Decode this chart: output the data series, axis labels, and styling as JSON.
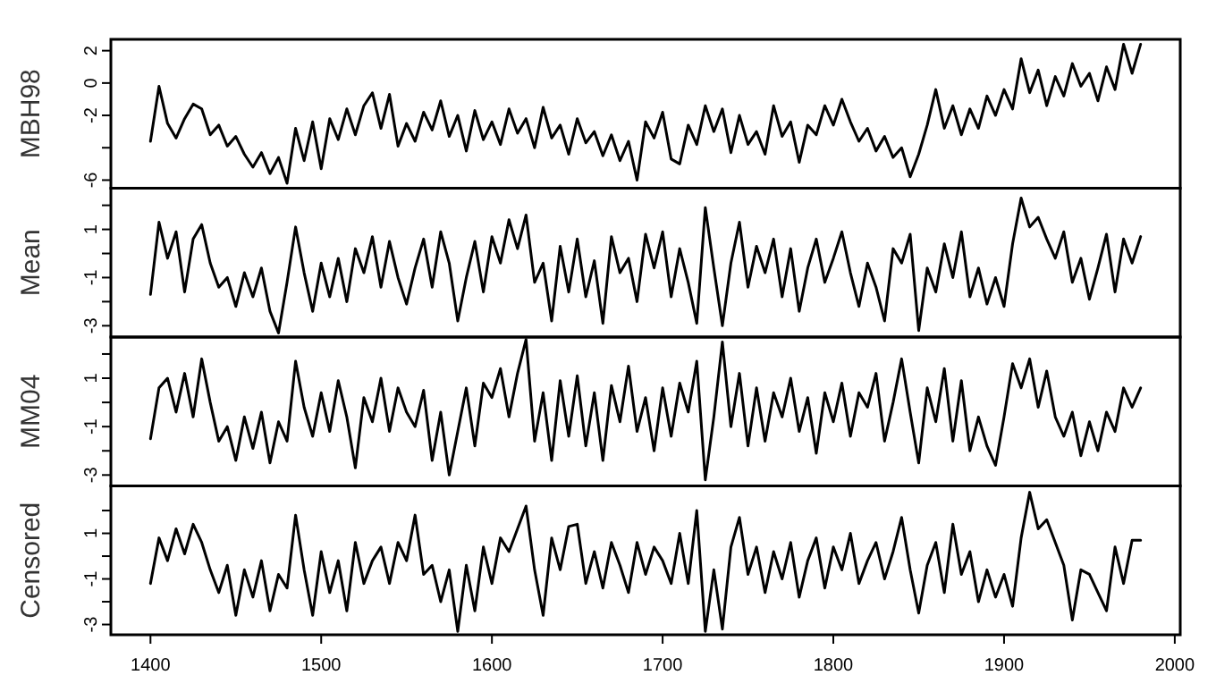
{
  "chart_data": [
    {
      "type": "line",
      "ylabel": "MBH98",
      "x": [
        1400,
        1405,
        1410,
        1415,
        1420,
        1425,
        1430,
        1435,
        1440,
        1445,
        1450,
        1455,
        1460,
        1465,
        1470,
        1475,
        1480,
        1485,
        1490,
        1495,
        1500,
        1505,
        1510,
        1515,
        1520,
        1525,
        1530,
        1535,
        1540,
        1545,
        1550,
        1555,
        1560,
        1565,
        1570,
        1575,
        1580,
        1585,
        1590,
        1595,
        1600,
        1605,
        1610,
        1615,
        1620,
        1625,
        1630,
        1635,
        1640,
        1645,
        1650,
        1655,
        1660,
        1665,
        1670,
        1675,
        1680,
        1685,
        1690,
        1695,
        1700,
        1705,
        1710,
        1715,
        1720,
        1725,
        1730,
        1735,
        1740,
        1745,
        1750,
        1755,
        1760,
        1765,
        1770,
        1775,
        1780,
        1785,
        1790,
        1795,
        1800,
        1805,
        1810,
        1815,
        1820,
        1825,
        1830,
        1835,
        1840,
        1845,
        1850,
        1855,
        1860,
        1865,
        1870,
        1875,
        1880,
        1885,
        1890,
        1895,
        1900,
        1905,
        1910,
        1915,
        1920,
        1925,
        1930,
        1935,
        1940,
        1945,
        1950,
        1955,
        1960,
        1965,
        1970,
        1975,
        1980
      ],
      "values": [
        -3.6,
        -0.2,
        -2.5,
        -3.4,
        -2.2,
        -1.3,
        -1.6,
        -3.2,
        -2.6,
        -3.9,
        -3.3,
        -4.4,
        -5.2,
        -4.3,
        -5.6,
        -4.6,
        -6.2,
        -2.8,
        -4.8,
        -2.4,
        -5.3,
        -2.2,
        -3.5,
        -1.6,
        -3.2,
        -1.4,
        -0.6,
        -2.8,
        -0.7,
        -3.9,
        -2.5,
        -3.6,
        -1.8,
        -2.9,
        -1.1,
        -3.3,
        -2.0,
        -4.2,
        -1.7,
        -3.5,
        -2.4,
        -3.8,
        -1.6,
        -3.1,
        -2.2,
        -4.0,
        -1.5,
        -3.4,
        -2.6,
        -4.4,
        -2.2,
        -3.7,
        -3.0,
        -4.5,
        -3.2,
        -4.8,
        -3.6,
        -6.0,
        -2.4,
        -3.4,
        -1.8,
        -4.7,
        -5.0,
        -2.6,
        -3.8,
        -1.4,
        -3.0,
        -1.6,
        -4.3,
        -2.0,
        -3.8,
        -3.0,
        -4.4,
        -1.4,
        -3.3,
        -2.4,
        -4.9,
        -2.6,
        -3.2,
        -1.4,
        -2.6,
        -1.0,
        -2.4,
        -3.6,
        -2.8,
        -4.2,
        -3.3,
        -4.6,
        -4.0,
        -5.8,
        -4.4,
        -2.6,
        -0.4,
        -2.8,
        -1.4,
        -3.2,
        -1.6,
        -2.8,
        -0.8,
        -2.0,
        -0.4,
        -1.6,
        1.5,
        -0.6,
        0.8,
        -1.4,
        0.4,
        -0.8,
        1.2,
        -0.2,
        0.6,
        -1.1,
        1.0,
        -0.4,
        2.4,
        0.6,
        2.4
      ],
      "color": "#000000",
      "xlim": [
        1376.8,
        2003.2
      ],
      "ylim": [
        -6.5,
        2.7
      ],
      "yticks": [
        2,
        0,
        -2,
        {
          "value": -4,
          "label": null
        },
        -6
      ],
      "tick_labels": "y"
    },
    {
      "type": "line",
      "ylabel": "Mean",
      "x": [
        1400,
        1405,
        1410,
        1415,
        1420,
        1425,
        1430,
        1435,
        1440,
        1445,
        1450,
        1455,
        1460,
        1465,
        1470,
        1475,
        1480,
        1485,
        1490,
        1495,
        1500,
        1505,
        1510,
        1515,
        1520,
        1525,
        1530,
        1535,
        1540,
        1545,
        1550,
        1555,
        1560,
        1565,
        1570,
        1575,
        1580,
        1585,
        1590,
        1595,
        1600,
        1605,
        1610,
        1615,
        1620,
        1625,
        1630,
        1635,
        1640,
        1645,
        1650,
        1655,
        1660,
        1665,
        1670,
        1675,
        1680,
        1685,
        1690,
        1695,
        1700,
        1705,
        1710,
        1715,
        1720,
        1725,
        1730,
        1735,
        1740,
        1745,
        1750,
        1755,
        1760,
        1765,
        1770,
        1775,
        1780,
        1785,
        1790,
        1795,
        1800,
        1805,
        1810,
        1815,
        1820,
        1825,
        1830,
        1835,
        1840,
        1845,
        1850,
        1855,
        1860,
        1865,
        1870,
        1875,
        1880,
        1885,
        1890,
        1895,
        1900,
        1905,
        1910,
        1915,
        1920,
        1925,
        1930,
        1935,
        1940,
        1945,
        1950,
        1955,
        1960,
        1965,
        1970,
        1975,
        1980
      ],
      "values": [
        -1.7,
        1.3,
        -0.2,
        0.9,
        -1.6,
        0.6,
        1.2,
        -0.4,
        -1.4,
        -1.0,
        -2.2,
        -0.8,
        -1.8,
        -0.6,
        -2.4,
        -3.3,
        -1.2,
        1.1,
        -0.8,
        -2.4,
        -0.4,
        -1.8,
        -0.2,
        -2.0,
        0.2,
        -0.8,
        0.7,
        -1.4,
        0.5,
        -1.0,
        -2.1,
        -0.6,
        0.6,
        -1.4,
        0.9,
        -0.4,
        -2.8,
        -1.0,
        0.5,
        -1.6,
        0.7,
        -0.4,
        1.4,
        0.2,
        1.6,
        -1.2,
        -0.4,
        -2.8,
        0.3,
        -1.6,
        0.6,
        -1.8,
        -0.3,
        -2.9,
        0.7,
        -0.8,
        -0.2,
        -2.0,
        0.8,
        -0.6,
        0.9,
        -1.8,
        0.2,
        -1.2,
        -2.9,
        1.9,
        -0.6,
        -3.0,
        -0.4,
        1.3,
        -1.4,
        0.3,
        -0.8,
        0.6,
        -1.8,
        0.2,
        -2.4,
        -0.6,
        0.6,
        -1.2,
        -0.2,
        0.9,
        -0.8,
        -2.2,
        -0.4,
        -1.4,
        -2.8,
        0.2,
        -0.4,
        0.8,
        -3.2,
        -0.6,
        -1.6,
        0.4,
        -1.0,
        0.9,
        -1.8,
        -0.6,
        -2.1,
        -1.0,
        -2.2,
        0.4,
        2.3,
        1.1,
        1.5,
        0.6,
        -0.2,
        0.9,
        -1.2,
        -0.2,
        -1.9,
        -0.6,
        0.8,
        -1.6,
        0.6,
        -0.4,
        0.7
      ],
      "color": "#000000",
      "xlim": [
        1376.8,
        2003.2
      ],
      "ylim": [
        -3.47,
        2.71
      ],
      "yticks": [
        -3,
        {
          "value": -2,
          "label": null
        },
        -1,
        {
          "value": 0,
          "label": null
        },
        1,
        {
          "value": 2,
          "label": null
        }
      ],
      "tick_labels": "y"
    },
    {
      "type": "line",
      "ylabel": "MM04",
      "x": [
        1400,
        1405,
        1410,
        1415,
        1420,
        1425,
        1430,
        1435,
        1440,
        1445,
        1450,
        1455,
        1460,
        1465,
        1470,
        1475,
        1480,
        1485,
        1490,
        1495,
        1500,
        1505,
        1510,
        1515,
        1520,
        1525,
        1530,
        1535,
        1540,
        1545,
        1550,
        1555,
        1560,
        1565,
        1570,
        1575,
        1580,
        1585,
        1590,
        1595,
        1600,
        1605,
        1610,
        1615,
        1620,
        1625,
        1630,
        1635,
        1640,
        1645,
        1650,
        1655,
        1660,
        1665,
        1670,
        1675,
        1680,
        1685,
        1690,
        1695,
        1700,
        1705,
        1710,
        1715,
        1720,
        1725,
        1730,
        1735,
        1740,
        1745,
        1750,
        1755,
        1760,
        1765,
        1770,
        1775,
        1780,
        1785,
        1790,
        1795,
        1800,
        1805,
        1810,
        1815,
        1820,
        1825,
        1830,
        1835,
        1840,
        1845,
        1850,
        1855,
        1860,
        1865,
        1870,
        1875,
        1880,
        1885,
        1890,
        1895,
        1900,
        1905,
        1910,
        1915,
        1920,
        1925,
        1930,
        1935,
        1940,
        1945,
        1950,
        1955,
        1960,
        1965,
        1970,
        1975,
        1980
      ],
      "values": [
        -1.5,
        0.6,
        1.0,
        -0.4,
        1.2,
        -0.6,
        1.8,
        0.0,
        -1.6,
        -1.0,
        -2.4,
        -0.6,
        -1.9,
        -0.4,
        -2.5,
        -0.8,
        -1.6,
        1.7,
        -0.2,
        -1.4,
        0.4,
        -1.2,
        0.9,
        -0.6,
        -2.7,
        0.2,
        -0.8,
        1.0,
        -1.2,
        0.6,
        -0.4,
        -1.0,
        0.5,
        -2.4,
        -0.4,
        -3.0,
        -1.2,
        0.6,
        -1.8,
        0.8,
        0.2,
        1.4,
        -0.6,
        1.2,
        2.6,
        -1.6,
        0.4,
        -2.4,
        0.9,
        -1.4,
        1.1,
        -1.8,
        0.4,
        -2.4,
        0.7,
        -0.8,
        1.5,
        -1.2,
        0.2,
        -2.0,
        0.6,
        -1.4,
        0.8,
        -0.4,
        1.7,
        -3.2,
        -0.6,
        2.5,
        -1.0,
        1.2,
        -1.8,
        0.6,
        -1.6,
        0.4,
        -0.6,
        1.0,
        -1.2,
        0.2,
        -2.1,
        0.4,
        -0.8,
        0.8,
        -1.4,
        0.4,
        -0.2,
        1.2,
        -1.6,
        0.0,
        1.8,
        -0.4,
        -2.5,
        0.6,
        -0.8,
        1.4,
        -1.6,
        0.9,
        -2.0,
        -0.6,
        -1.8,
        -2.6,
        -0.6,
        1.6,
        0.6,
        1.8,
        -0.2,
        1.3,
        -0.6,
        -1.4,
        -0.4,
        -2.2,
        -0.8,
        -2.0,
        -0.4,
        -1.2,
        0.6,
        -0.2,
        0.6
      ],
      "color": "#000000",
      "xlim": [
        1376.8,
        2003.2
      ],
      "ylim": [
        -3.45,
        2.7
      ],
      "yticks": [
        -3,
        {
          "value": -2,
          "label": null
        },
        -1,
        {
          "value": 0,
          "label": null
        },
        1,
        {
          "value": 2,
          "label": null
        }
      ],
      "tick_labels": "y"
    },
    {
      "type": "line",
      "ylabel": "Censored",
      "x": [
        1400,
        1405,
        1410,
        1415,
        1420,
        1425,
        1430,
        1435,
        1440,
        1445,
        1450,
        1455,
        1460,
        1465,
        1470,
        1475,
        1480,
        1485,
        1490,
        1495,
        1500,
        1505,
        1510,
        1515,
        1520,
        1525,
        1530,
        1535,
        1540,
        1545,
        1550,
        1555,
        1560,
        1565,
        1570,
        1575,
        1580,
        1585,
        1590,
        1595,
        1600,
        1605,
        1610,
        1615,
        1620,
        1625,
        1630,
        1635,
        1640,
        1645,
        1650,
        1655,
        1660,
        1665,
        1670,
        1675,
        1680,
        1685,
        1690,
        1695,
        1700,
        1705,
        1710,
        1715,
        1720,
        1725,
        1730,
        1735,
        1740,
        1745,
        1750,
        1755,
        1760,
        1765,
        1770,
        1775,
        1780,
        1785,
        1790,
        1795,
        1800,
        1805,
        1810,
        1815,
        1820,
        1825,
        1830,
        1835,
        1840,
        1845,
        1850,
        1855,
        1860,
        1865,
        1870,
        1875,
        1880,
        1885,
        1890,
        1895,
        1900,
        1905,
        1910,
        1915,
        1920,
        1925,
        1930,
        1935,
        1940,
        1945,
        1950,
        1955,
        1960,
        1965,
        1970,
        1975,
        1980
      ],
      "values": [
        -1.2,
        0.8,
        -0.2,
        1.2,
        0.1,
        1.4,
        0.6,
        -0.6,
        -1.6,
        -0.4,
        -2.6,
        -0.6,
        -1.8,
        -0.2,
        -2.4,
        -0.8,
        -1.4,
        1.8,
        -0.6,
        -2.6,
        0.2,
        -1.6,
        -0.2,
        -2.4,
        0.6,
        -1.2,
        -0.2,
        0.4,
        -1.2,
        0.6,
        -0.2,
        1.8,
        -0.8,
        -0.4,
        -2.0,
        -0.6,
        -3.3,
        -0.4,
        -2.4,
        0.4,
        -1.2,
        0.8,
        0.2,
        1.2,
        2.2,
        -0.6,
        -2.6,
        0.8,
        -0.6,
        1.3,
        1.4,
        -1.2,
        0.2,
        -1.4,
        0.6,
        -0.4,
        -1.6,
        0.6,
        -0.8,
        0.4,
        -0.2,
        -1.2,
        1.0,
        -1.2,
        2.0,
        -3.3,
        -0.6,
        -3.2,
        0.4,
        1.7,
        -0.8,
        0.4,
        -1.6,
        0.2,
        -1.0,
        0.6,
        -1.8,
        -0.2,
        0.8,
        -1.4,
        0.4,
        -0.6,
        1.0,
        -1.2,
        -0.2,
        0.6,
        -1.0,
        0.2,
        1.7,
        -0.6,
        -2.5,
        -0.4,
        0.6,
        -1.6,
        1.4,
        -0.8,
        0.2,
        -2.0,
        -0.6,
        -1.8,
        -0.8,
        -2.2,
        0.8,
        2.8,
        1.2,
        1.6,
        0.6,
        -0.4,
        -2.8,
        -0.6,
        -0.8,
        -1.6,
        -2.4,
        0.4,
        -1.2,
        0.7,
        0.7
      ],
      "color": "#000000",
      "xlim": [
        1376.8,
        2003.2
      ],
      "xticks": [
        1400,
        1500,
        1600,
        1700,
        1800,
        1900,
        2000
      ],
      "ylim": [
        -3.45,
        3.08
      ],
      "yticks": [
        -3,
        {
          "value": -2,
          "label": null
        },
        -1,
        {
          "value": 0,
          "label": null
        },
        1,
        {
          "value": 2,
          "label": null
        }
      ]
    }
  ]
}
